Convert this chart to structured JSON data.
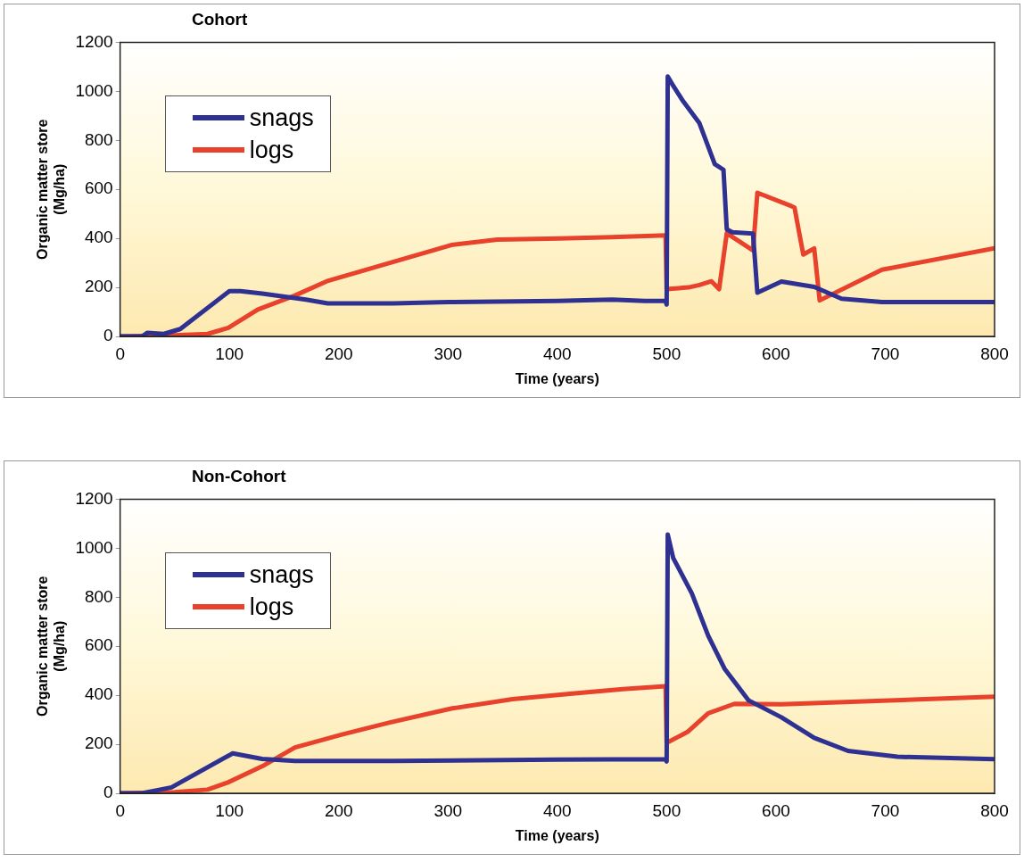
{
  "chart_data": [
    {
      "type": "line",
      "title": "Cohort",
      "xlabel": "Time (years)",
      "ylabel": "Organic matter store (Mg/ha)",
      "xlim": [
        0,
        800
      ],
      "xticks": [
        0,
        100,
        200,
        300,
        400,
        500,
        600,
        700,
        800
      ],
      "ylim": [
        0,
        1200
      ],
      "yticks": [
        0,
        200,
        400,
        600,
        800,
        1000,
        1200
      ],
      "grid": false,
      "legend": "left",
      "marker": "none",
      "line_style": "solid",
      "series": [
        {
          "name": "snags",
          "color": "#2e3192",
          "x": [
            0,
            20,
            25,
            40,
            55,
            100,
            110,
            130,
            170,
            190,
            250,
            300,
            400,
            450,
            480,
            499,
            500,
            501,
            505,
            515,
            530,
            544,
            552,
            555,
            560,
            579,
            583,
            605,
            635,
            660,
            697,
            750,
            800
          ],
          "values": [
            0,
            0,
            15,
            10,
            30,
            185,
            185,
            175,
            150,
            135,
            135,
            140,
            145,
            150,
            145,
            145,
            130,
            1060,
            1030,
            960,
            870,
            703,
            680,
            437,
            425,
            420,
            178,
            224,
            202,
            154,
            140,
            140,
            140
          ]
        },
        {
          "name": "logs",
          "color": "#e8412c",
          "x": [
            0,
            50,
            80,
            99,
            126,
            160,
            189,
            246,
            303,
            345,
            402,
            450,
            499,
            500,
            520,
            530,
            541,
            548,
            555,
            579,
            583,
            614,
            617,
            625,
            635,
            640,
            697,
            800
          ],
          "values": [
            0,
            5,
            10,
            35,
            110,
            167,
            225,
            299,
            373,
            395,
            400,
            405,
            412,
            193,
            200,
            210,
            225,
            193,
            421,
            351,
            586,
            532,
            525,
            334,
            359,
            147,
            272,
            360
          ]
        }
      ]
    },
    {
      "type": "line",
      "title": "Non-Cohort",
      "xlabel": "Time (years)",
      "ylabel": "Organic matter store (Mg/ha)",
      "xlim": [
        0,
        800
      ],
      "xticks": [
        0,
        100,
        200,
        300,
        400,
        500,
        600,
        700,
        800
      ],
      "ylim": [
        0,
        1200
      ],
      "yticks": [
        0,
        200,
        400,
        600,
        800,
        1000,
        1200
      ],
      "grid": false,
      "legend": "left",
      "marker": "none",
      "line_style": "solid",
      "series": [
        {
          "name": "snags",
          "color": "#2e3192",
          "x": [
            0,
            20,
            47,
            103,
            130,
            160,
            250,
            400,
            499,
            500,
            501,
            506,
            523,
            538,
            553,
            575,
            605,
            635,
            666,
            711,
            800
          ],
          "values": [
            0,
            0,
            24,
            163,
            140,
            132,
            132,
            137,
            139,
            130,
            1056,
            960,
            816,
            643,
            508,
            379,
            310,
            226,
            173,
            149,
            139
          ]
        },
        {
          "name": "logs",
          "color": "#e8412c",
          "x": [
            0,
            50,
            80,
            98,
            132,
            160,
            203,
            246,
            303,
            359,
            416,
            460,
            499,
            500,
            519,
            538,
            562,
            605,
            800
          ],
          "values": [
            0,
            5,
            15,
            43,
            115,
            187,
            240,
            288,
            346,
            384,
            408,
            425,
            437,
            206,
            250,
            326,
            365,
            363,
            394
          ]
        }
      ]
    }
  ]
}
